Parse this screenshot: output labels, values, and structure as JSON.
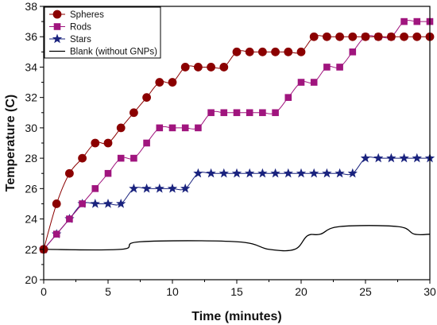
{
  "chart_data": {
    "type": "line",
    "title": "",
    "xlabel": "Time (minutes)",
    "ylabel": "Temperature (C)",
    "xlim": [
      0,
      30
    ],
    "ylim": [
      20,
      38
    ],
    "xticks": [
      0,
      5,
      10,
      15,
      20,
      25,
      30
    ],
    "yticks": [
      20,
      22,
      24,
      26,
      28,
      30,
      32,
      34,
      36,
      38
    ],
    "grid": false,
    "legend_position": "top-left",
    "series": [
      {
        "name": "Spheres",
        "marker": "circle",
        "color": "#8b0000",
        "x": [
          0,
          1,
          2,
          3,
          4,
          5,
          6,
          7,
          8,
          9,
          10,
          11,
          12,
          13,
          14,
          15,
          16,
          17,
          18,
          19,
          20,
          21,
          22,
          23,
          24,
          25,
          26,
          27,
          28,
          29,
          30
        ],
        "y": [
          22,
          25,
          27,
          28,
          29,
          29,
          30,
          31,
          32,
          33,
          33,
          34,
          34,
          34,
          34,
          35,
          35,
          35,
          35,
          35,
          35,
          36,
          36,
          36,
          36,
          36,
          36,
          36,
          36,
          36,
          36
        ]
      },
      {
        "name": "Rods",
        "marker": "square",
        "color": "#a0157e",
        "x": [
          0,
          1,
          2,
          3,
          4,
          5,
          6,
          7,
          8,
          9,
          10,
          11,
          12,
          13,
          14,
          15,
          16,
          17,
          18,
          19,
          20,
          21,
          22,
          23,
          24,
          25,
          26,
          27,
          28,
          29,
          30
        ],
        "y": [
          22,
          23,
          24,
          25,
          26,
          27,
          28,
          28,
          29,
          30,
          30,
          30,
          30,
          31,
          31,
          31,
          31,
          31,
          31,
          32,
          33,
          33,
          34,
          34,
          35,
          36,
          36,
          36,
          37,
          37,
          37
        ]
      },
      {
        "name": "Stars",
        "marker": "star",
        "color": "#1a237e",
        "x": [
          0,
          1,
          2,
          3,
          4,
          5,
          6,
          7,
          8,
          9,
          10,
          11,
          12,
          13,
          14,
          15,
          16,
          17,
          18,
          19,
          20,
          21,
          22,
          23,
          24,
          25,
          26,
          27,
          28,
          29,
          30
        ],
        "y": [
          22,
          23,
          24,
          25,
          25,
          25,
          25,
          26,
          26,
          26,
          26,
          26,
          27,
          27,
          27,
          27,
          27,
          27,
          27,
          27,
          27,
          27,
          27,
          27,
          27,
          28,
          28,
          28,
          28,
          28,
          28
        ]
      },
      {
        "name": "Blank (without GNPs)",
        "marker": "none",
        "color": "#000000",
        "x": [
          0,
          6,
          7.5,
          15,
          17.5,
          19.5,
          20.5,
          21.5,
          23,
          27.5,
          28.8,
          30
        ],
        "y": [
          22,
          22,
          22.5,
          22.5,
          22,
          22,
          22.9,
          23,
          23.5,
          23.5,
          23,
          23
        ]
      }
    ]
  }
}
